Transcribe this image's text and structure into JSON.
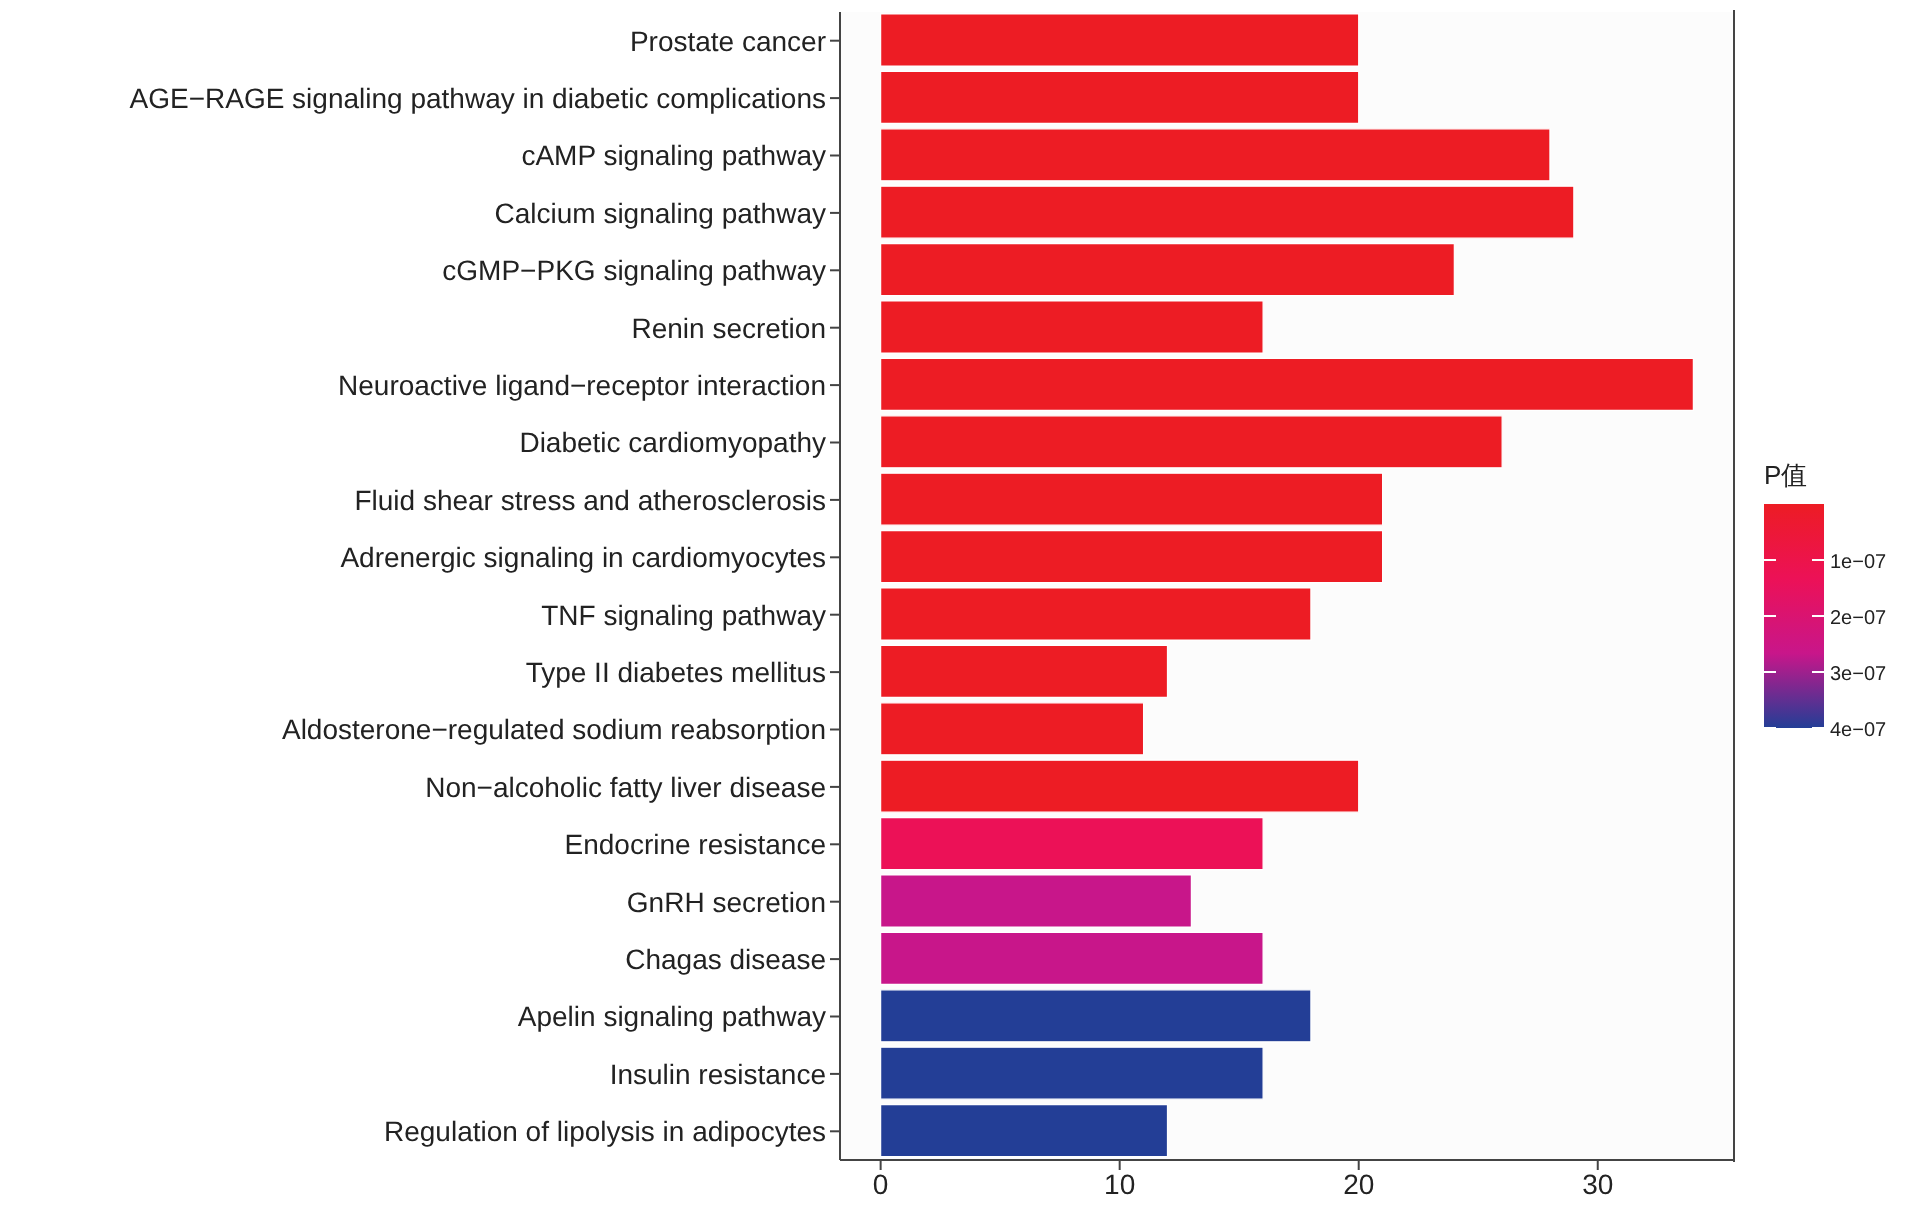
{
  "chart_data": {
    "type": "bar",
    "orientation": "horizontal",
    "categories": [
      "Prostate cancer",
      "AGE−RAGE signaling pathway in diabetic complications",
      "cAMP signaling pathway",
      "Calcium signaling pathway",
      "cGMP−PKG signaling pathway",
      "Renin secretion",
      "Neuroactive ligand−receptor interaction",
      "Diabetic cardiomyopathy",
      "Fluid shear stress and atherosclerosis",
      "Adrenergic signaling in cardiomyocytes",
      "TNF signaling pathway",
      "Type II diabetes mellitus",
      "Aldosterone−regulated sodium reabsorption",
      "Non−alcoholic fatty liver disease",
      "Endocrine resistance",
      "GnRH secretion",
      "Chagas disease",
      "Apelin signaling pathway",
      "Insulin resistance",
      "Regulation of lipolysis in adipocytes"
    ],
    "values": [
      20,
      20,
      28,
      29,
      24,
      16,
      34,
      26,
      21,
      21,
      18,
      12,
      11,
      20,
      16,
      13,
      16,
      18,
      16,
      12
    ],
    "colors": [
      "#ed1c24",
      "#ed1c24",
      "#ed1c24",
      "#ed1c24",
      "#ed1c24",
      "#ed1c24",
      "#ed1c24",
      "#ed1c24",
      "#ed1c24",
      "#ed1c24",
      "#ed1c24",
      "#ed1c24",
      "#ed1c24",
      "#ed1c24",
      "#ec1157",
      "#c8168a",
      "#c8168a",
      "#233e96",
      "#233e96",
      "#233e96"
    ],
    "xlim": [
      -1.7,
      35.7
    ],
    "xticks": [
      0,
      10,
      20,
      30
    ],
    "clabel": "P值",
    "clim": [
      0,
      4e-07
    ],
    "cticks": [
      {
        "value": 1e-07,
        "label": "1e−07"
      },
      {
        "value": 2e-07,
        "label": "2e−07"
      },
      {
        "value": 3e-07,
        "label": "3e−07"
      },
      {
        "value": 4e-07,
        "label": "4e−07"
      }
    ]
  }
}
